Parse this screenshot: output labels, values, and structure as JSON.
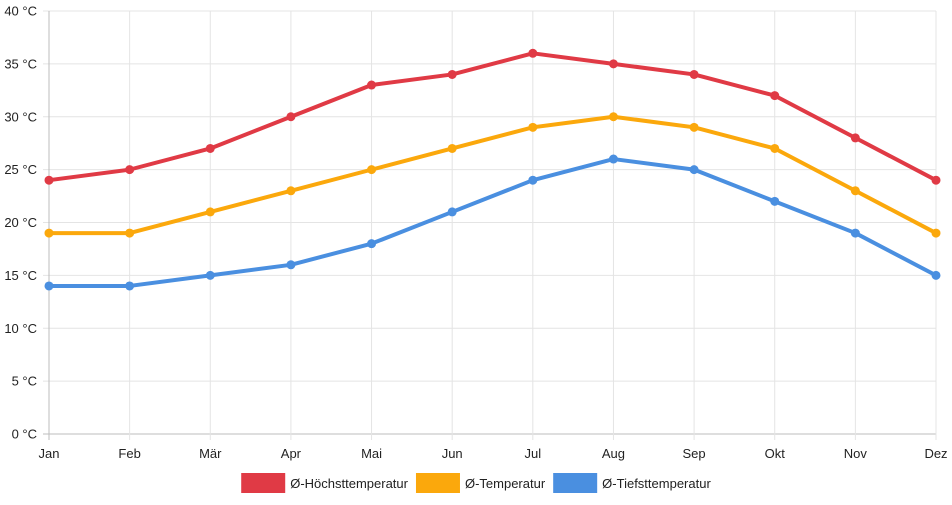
{
  "chart_data": {
    "type": "line",
    "title": "",
    "xlabel": "",
    "ylabel": "",
    "categories": [
      "Jan",
      "Feb",
      "Mär",
      "Apr",
      "Mai",
      "Jun",
      "Jul",
      "Aug",
      "Sep",
      "Okt",
      "Nov",
      "Dez"
    ],
    "ylim": [
      0,
      40
    ],
    "yticks": [
      0,
      5,
      10,
      15,
      20,
      25,
      30,
      35,
      40
    ],
    "ytick_labels": [
      "0 °C",
      "5 °C",
      "10 °C",
      "15 °C",
      "20 °C",
      "25 °C",
      "30 °C",
      "35 °C",
      "40 °C"
    ],
    "grid": true,
    "legend_position": "bottom",
    "series": [
      {
        "key": "max",
        "name": "Ø-Höchsttemperatur",
        "color": "#e03a45",
        "values": [
          24,
          25,
          27,
          30,
          33,
          34,
          36,
          35,
          34,
          32,
          28,
          24
        ]
      },
      {
        "key": "avg",
        "name": "Ø-Temperatur",
        "color": "#fba80c",
        "values": [
          19,
          19,
          21,
          23,
          25,
          27,
          29,
          30,
          29,
          27,
          23,
          19
        ]
      },
      {
        "key": "min",
        "name": "Ø-Tiefsttemperatur",
        "color": "#4a8fe0",
        "values": [
          14,
          14,
          15,
          16,
          18,
          21,
          24,
          26,
          25,
          22,
          19,
          15
        ]
      }
    ]
  }
}
